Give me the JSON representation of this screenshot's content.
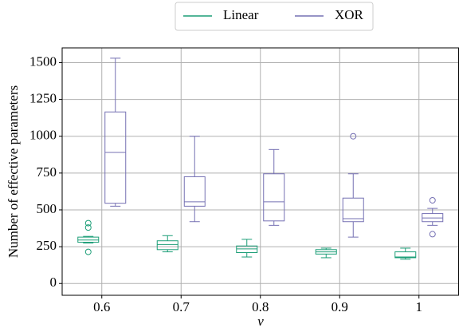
{
  "chart_data": {
    "type": "box",
    "x_label": "ν",
    "y_label": "Number of effective parameters",
    "categories": [
      "0.6",
      "0.7",
      "0.8",
      "0.9",
      "1"
    ],
    "ylim": [
      -80,
      1600
    ],
    "yticks": [
      0,
      250,
      500,
      750,
      1000,
      1250,
      1500
    ],
    "grid": true,
    "legend_position": "top",
    "series": [
      {
        "name": "Linear",
        "color": "#1b9e77",
        "min": [
          275,
          215,
          180,
          175,
          165
        ],
        "q1": [
          280,
          230,
          210,
          200,
          175
        ],
        "median": [
          295,
          265,
          235,
          215,
          180
        ],
        "q3": [
          315,
          290,
          255,
          230,
          215
        ],
        "max": [
          320,
          325,
          300,
          240,
          240
        ],
        "outliers": [
          [
            410,
            380,
            215
          ],
          [],
          [],
          [],
          []
        ]
      },
      {
        "name": "XOR",
        "color": "#7570b3",
        "min": [
          525,
          420,
          395,
          315,
          395
        ],
        "q1": [
          545,
          525,
          425,
          420,
          420
        ],
        "median": [
          890,
          555,
          555,
          440,
          445
        ],
        "q3": [
          1165,
          725,
          745,
          580,
          475
        ],
        "max": [
          1530,
          1000,
          910,
          745,
          510
        ],
        "outliers": [
          [],
          [],
          [],
          [
            1000
          ],
          [
            565,
            335
          ]
        ]
      }
    ]
  }
}
